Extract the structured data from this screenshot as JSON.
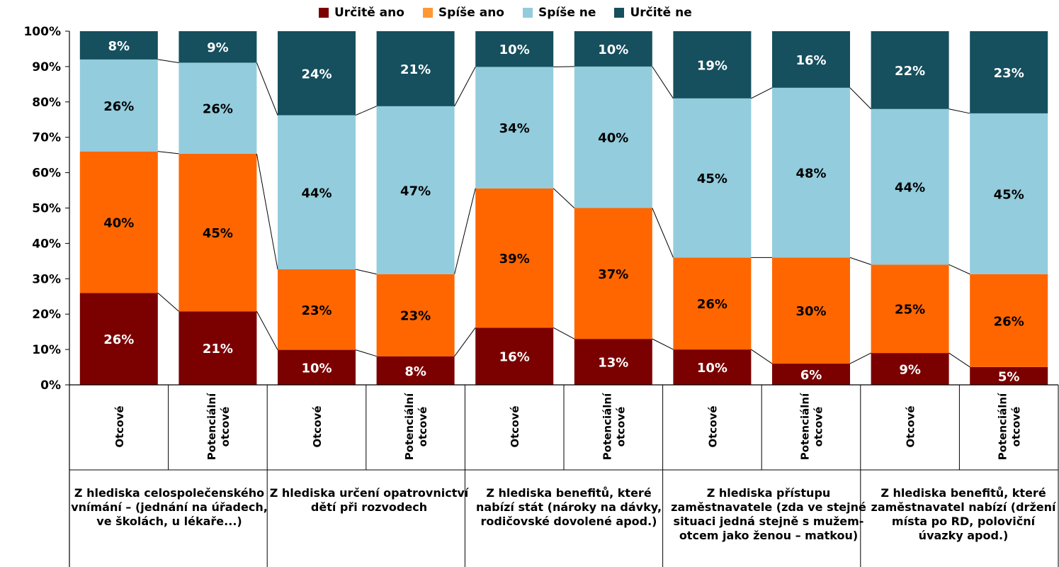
{
  "legend": {
    "items": [
      {
        "label": "Určitě ano",
        "color": "#7b0000"
      },
      {
        "label": "Spíše ano",
        "color": "#ff9933"
      },
      {
        "label": "Spíše ne",
        "color": "#93ccdd"
      },
      {
        "label": "Určitě ne",
        "color": "#164f5e"
      }
    ]
  },
  "groups": [
    {
      "label": "Z hlediska celospolečenského vnímání – (jednání na úřadech, ve školách, u lékaře...)"
    },
    {
      "label": "Z hlediska určení opatrovnictví dětí při rozvodech"
    },
    {
      "label": "Z hlediska benefitů, které nabízí stát (nároky na dávky, rodičovské dovolené apod.)"
    },
    {
      "label": "Z hlediska přístupu zaměstnavatele (zda ve stejné situaci jedná stejně s mužem-otcem jako ženou – matkou)"
    },
    {
      "label": "Z hlediska benefitů, které zaměstnavatel nabízí (držení místa po RD, poloviční úvazky apod.)"
    }
  ],
  "chart_data": {
    "type": "bar",
    "stacked": true,
    "normalized": true,
    "ylim": [
      0,
      100
    ],
    "yticks": [
      "0%",
      "10%",
      "20%",
      "30%",
      "40%",
      "50%",
      "60%",
      "70%",
      "80%",
      "90%",
      "100%"
    ],
    "categories": [
      "Otcové",
      "Potenciální otcové",
      "Otcové",
      "Potenciální otcové",
      "Otcové",
      "Potenciální otcové",
      "Otcové",
      "Potenciální otcové",
      "Otcové",
      "Potenciální otcové"
    ],
    "series": [
      {
        "name": "Určitě ano",
        "color": "#7b0000",
        "values": [
          26,
          21,
          10,
          8,
          16,
          13,
          10,
          6,
          9,
          5
        ],
        "labels": [
          "26%",
          "21%",
          "10%",
          "8%",
          "16%",
          "13%",
          "10%",
          "6%",
          "9%",
          "5%"
        ]
      },
      {
        "name": "Spíše ano",
        "color": "#ff6600",
        "values": [
          40,
          45,
          23,
          23,
          39,
          37,
          26,
          30,
          25,
          26
        ],
        "labels": [
          "40%",
          "45%",
          "23%",
          "23%",
          "39%",
          "37%",
          "26%",
          "30%",
          "25%",
          "26%"
        ]
      },
      {
        "name": "Spíše ne",
        "color": "#93ccdd",
        "values": [
          26,
          26,
          44,
          47,
          34,
          40,
          45,
          48,
          44,
          45
        ],
        "labels": [
          "26%",
          "26%",
          "44%",
          "47%",
          "34%",
          "40%",
          "45%",
          "48%",
          "44%",
          "45%"
        ]
      },
      {
        "name": "Určitě ne",
        "color": "#164f5e",
        "values": [
          8,
          9,
          24,
          21,
          10,
          10,
          19,
          16,
          22,
          23
        ],
        "labels": [
          "8%",
          "9%",
          "24%",
          "21%",
          "10%",
          "10%",
          "19%",
          "16%",
          "22%",
          "23%"
        ]
      }
    ],
    "legend_position": "top",
    "series_lines": true,
    "grid": false
  }
}
